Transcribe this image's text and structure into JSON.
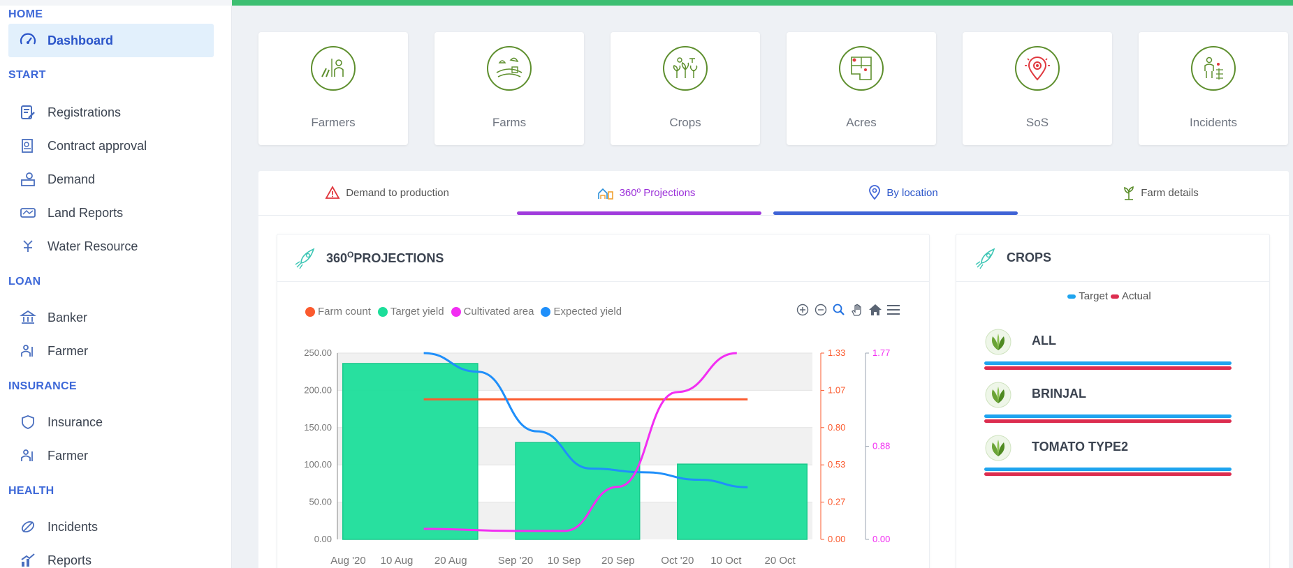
{
  "sidebar": {
    "sections": [
      {
        "title": "HOME",
        "items": [
          {
            "label": "Dashboard",
            "icon": "gauge-icon",
            "active": true
          }
        ]
      },
      {
        "title": "START",
        "items": [
          {
            "label": "Registrations",
            "icon": "registration-icon"
          },
          {
            "label": "Contract approval",
            "icon": "contract-icon"
          },
          {
            "label": "Demand",
            "icon": "demand-icon"
          },
          {
            "label": "Land Reports",
            "icon": "land-report-icon"
          },
          {
            "label": "Water Resource",
            "icon": "water-resource-icon"
          }
        ]
      },
      {
        "title": "LOAN",
        "items": [
          {
            "label": "Banker",
            "icon": "bank-icon"
          },
          {
            "label": "Farmer",
            "icon": "farmer-icon"
          }
        ]
      },
      {
        "title": "INSURANCE",
        "items": [
          {
            "label": "Insurance",
            "icon": "insurance-icon"
          },
          {
            "label": "Farmer",
            "icon": "farmer-icon"
          }
        ]
      },
      {
        "title": "HEALTH",
        "items": [
          {
            "label": "Incidents",
            "icon": "incident-icon"
          },
          {
            "label": "Reports",
            "icon": "reports-icon"
          }
        ]
      }
    ]
  },
  "cards": [
    {
      "label": "Farmers",
      "icon": "farmers-icon"
    },
    {
      "label": "Farms",
      "icon": "farms-icon"
    },
    {
      "label": "Crops",
      "icon": "crops-icon"
    },
    {
      "label": "Acres",
      "icon": "acres-map-icon"
    },
    {
      "label": "SoS",
      "icon": "sos-location-icon"
    },
    {
      "label": "Incidents",
      "icon": "incidents-icon"
    }
  ],
  "tabs": [
    {
      "label": "Demand to production",
      "icon": "warning-icon",
      "color": "#555555"
    },
    {
      "label": "360º Projections",
      "icon": "projection-icon",
      "color": "#9b30d9",
      "underline": "#a03bdc"
    },
    {
      "label": "By location",
      "icon": "location-pin-icon",
      "color": "#2b55c9",
      "underline": "#3f63d6"
    },
    {
      "label": "Farm details",
      "icon": "plant-icon",
      "color": "#555555"
    }
  ],
  "projections": {
    "title_prefix": "360",
    "title_sup": "O",
    "title_suffix": "PROJECTIONS",
    "legend": [
      {
        "label": "Farm count",
        "color": "#fb5a2e"
      },
      {
        "label": "Target yield",
        "color": "#1cde9a"
      },
      {
        "label": "Cultivated area",
        "color": "#f22ef2"
      },
      {
        "label": "Expected yield",
        "color": "#1f8ffa"
      }
    ],
    "tools": [
      "zoom-in-icon",
      "zoom-out-icon",
      "magnify-icon",
      "pan-hand-icon",
      "home-icon",
      "menu-icon"
    ]
  },
  "chart_data": {
    "type": "bar",
    "x_ticks": [
      "Aug '20",
      "10 Aug",
      "20 Aug",
      "Sep '20",
      "10 Sep",
      "20 Sep",
      "Oct '20",
      "10 Oct",
      "20 Oct"
    ],
    "y_left_ticks": [
      "250.00",
      "200.00",
      "150.00",
      "100.00",
      "50.00",
      "0.00"
    ],
    "y_right1_ticks": [
      "1.33",
      "1.07",
      "0.80",
      "0.53",
      "0.27",
      "0.00"
    ],
    "y_right2_ticks": [
      "1.77",
      "0.88",
      "0.00"
    ],
    "ylim_left": [
      0,
      250
    ],
    "ylim_right1": [
      0,
      1.33
    ],
    "ylim_right2": [
      0,
      1.77
    ],
    "grid": true,
    "series": [
      {
        "name": "Target yield",
        "type": "bar",
        "color": "#1cde9a",
        "x": [
          "Aug 2020",
          "Sep 2020",
          "Oct 2020"
        ],
        "values": [
          236,
          130,
          101
        ]
      },
      {
        "name": "Farm count",
        "type": "line",
        "axis": "right1",
        "color": "#fb5a2e",
        "x": [
          "2020-08-15",
          "2020-10-14"
        ],
        "values": [
          1.0,
          1.0
        ]
      },
      {
        "name": "Expected yield",
        "type": "line",
        "color": "#1f8ffa",
        "x": [
          "2020-08-15",
          "2020-08-25",
          "2020-09-05",
          "2020-09-15",
          "2020-09-25",
          "2020-10-05",
          "2020-10-14"
        ],
        "values": [
          250,
          225,
          145,
          95,
          90,
          80,
          70
        ]
      },
      {
        "name": "Cultivated area",
        "type": "line",
        "axis": "right2",
        "color": "#f22ef2",
        "x": [
          "2020-08-15",
          "2020-09-01",
          "2020-09-10",
          "2020-09-20",
          "2020-10-01",
          "2020-10-12"
        ],
        "values": [
          0.1,
          0.08,
          0.08,
          0.5,
          1.4,
          1.77
        ]
      }
    ]
  },
  "crops": {
    "title": "CROPS",
    "legend": [
      {
        "label": "Target",
        "color": "#1ea4ef"
      },
      {
        "label": "Actual",
        "color": "#dc2d4f"
      }
    ],
    "items": [
      {
        "name": "ALL"
      },
      {
        "name": "BRINJAL"
      },
      {
        "name": "TOMATO TYPE2"
      }
    ]
  }
}
